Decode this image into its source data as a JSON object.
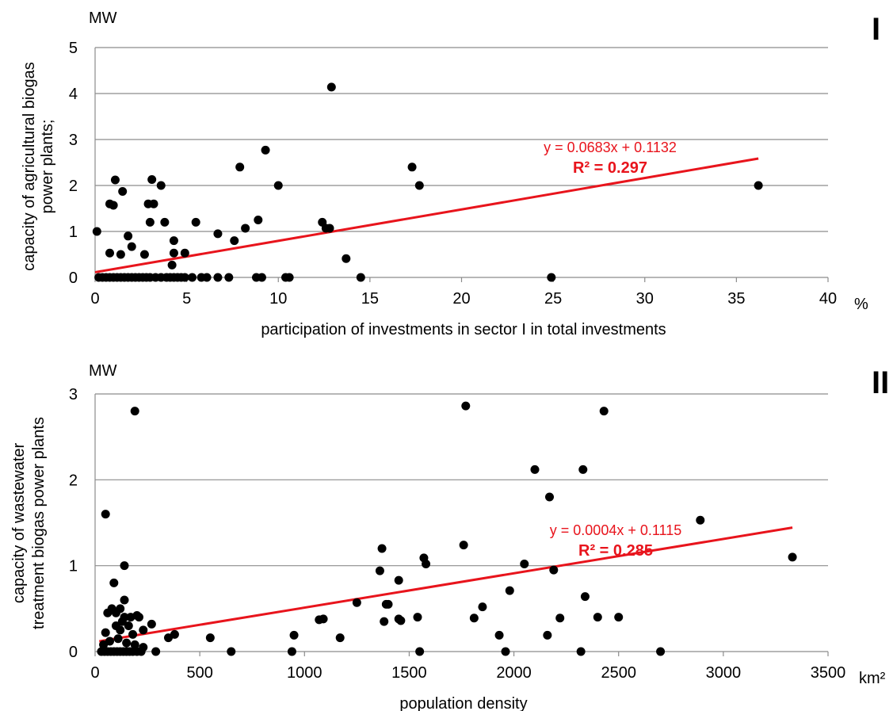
{
  "chart_data": [
    {
      "type": "scatter",
      "panel_label": "I",
      "y_unit": "MW",
      "x_unit": "%",
      "xlabel": "participation of investments in sector I in total investments",
      "ylabel": [
        "capacity of agricultural biogas",
        "power plants;"
      ],
      "xlim": [
        0,
        40
      ],
      "ylim": [
        0,
        5
      ],
      "x_ticks": [
        "0",
        "5",
        "10",
        "15",
        "20",
        "25",
        "30",
        "35",
        "40"
      ],
      "y_ticks": [
        "0",
        "1",
        "2",
        "3",
        "4",
        "5"
      ],
      "grid": true,
      "point_color": "#000000",
      "trend_color": "#e8141c",
      "trendline": {
        "slope": 0.0683,
        "intercept": 0.1132,
        "x_range": [
          0,
          36.2
        ]
      },
      "equation": "y = 0.0683x + 0.1132",
      "r_squared": "R² = 0.297",
      "points": [
        [
          0.1,
          1.0
        ],
        [
          0.8,
          0.53
        ],
        [
          0.8,
          1.6
        ],
        [
          1.0,
          1.57
        ],
        [
          1.1,
          2.12
        ],
        [
          1.4,
          0.5
        ],
        [
          1.5,
          1.87
        ],
        [
          1.8,
          0.9
        ],
        [
          2.0,
          0.67
        ],
        [
          2.7,
          0.5
        ],
        [
          2.9,
          1.6
        ],
        [
          3.0,
          1.2
        ],
        [
          3.1,
          2.13
        ],
        [
          3.2,
          1.6
        ],
        [
          3.6,
          2.0
        ],
        [
          3.8,
          1.2
        ],
        [
          4.2,
          0.27
        ],
        [
          4.3,
          0.53
        ],
        [
          4.3,
          0.8
        ],
        [
          4.9,
          0.53
        ],
        [
          5.5,
          1.2
        ],
        [
          6.7,
          0.95
        ],
        [
          7.6,
          0.8
        ],
        [
          7.9,
          2.4
        ],
        [
          8.2,
          1.07
        ],
        [
          8.9,
          1.25
        ],
        [
          9.3,
          2.77
        ],
        [
          10.0,
          2.0
        ],
        [
          12.4,
          1.2
        ],
        [
          12.6,
          1.07
        ],
        [
          12.8,
          1.07
        ],
        [
          12.9,
          4.14
        ],
        [
          13.7,
          0.41
        ],
        [
          17.3,
          2.4
        ],
        [
          17.7,
          2.0
        ],
        [
          36.2,
          2.0
        ],
        [
          0.2,
          0
        ],
        [
          0.4,
          0
        ],
        [
          0.6,
          0
        ],
        [
          0.8,
          0
        ],
        [
          1.0,
          0
        ],
        [
          1.2,
          0
        ],
        [
          1.4,
          0
        ],
        [
          1.6,
          0
        ],
        [
          1.8,
          0
        ],
        [
          2.0,
          0
        ],
        [
          2.2,
          0
        ],
        [
          2.4,
          0
        ],
        [
          2.6,
          0
        ],
        [
          2.8,
          0
        ],
        [
          3.0,
          0
        ],
        [
          3.3,
          0
        ],
        [
          3.6,
          0
        ],
        [
          3.9,
          0
        ],
        [
          4.1,
          0
        ],
        [
          4.3,
          0
        ],
        [
          4.5,
          0
        ],
        [
          4.7,
          0
        ],
        [
          4.9,
          0
        ],
        [
          5.3,
          0
        ],
        [
          5.8,
          0
        ],
        [
          6.1,
          0
        ],
        [
          6.7,
          0
        ],
        [
          7.3,
          0
        ],
        [
          8.8,
          0
        ],
        [
          9.1,
          0
        ],
        [
          10.4,
          0
        ],
        [
          10.6,
          0
        ],
        [
          14.5,
          0
        ],
        [
          24.9,
          0
        ]
      ]
    },
    {
      "type": "scatter",
      "panel_label": "II",
      "y_unit": "MW",
      "x_unit": "km²",
      "xlabel": "population density",
      "ylabel": [
        "capacity of wastewater",
        "treatment biogas power plants"
      ],
      "xlim": [
        0,
        3500
      ],
      "ylim": [
        0,
        3
      ],
      "x_ticks": [
        "0",
        "500",
        "1000",
        "1500",
        "2000",
        "2500",
        "3000",
        "3500"
      ],
      "y_ticks": [
        "0",
        "1",
        "2",
        "3"
      ],
      "grid": true,
      "point_color": "#000000",
      "trend_color": "#e8141c",
      "trendline": {
        "slope": 0.0004,
        "intercept": 0.1115,
        "x_range": [
          20,
          3330
        ]
      },
      "equation": "y = 0.0004x + 0.1115",
      "r_squared": "R² = 0.285",
      "points": [
        [
          190,
          2.8
        ],
        [
          50,
          1.6
        ],
        [
          140,
          1.0
        ],
        [
          90,
          0.8
        ],
        [
          140,
          0.6
        ],
        [
          120,
          0.5
        ],
        [
          80,
          0.5
        ],
        [
          60,
          0.45
        ],
        [
          100,
          0.45
        ],
        [
          140,
          0.4
        ],
        [
          170,
          0.4
        ],
        [
          210,
          0.4
        ],
        [
          200,
          0.42
        ],
        [
          130,
          0.35
        ],
        [
          160,
          0.3
        ],
        [
          100,
          0.3
        ],
        [
          120,
          0.25
        ],
        [
          50,
          0.22
        ],
        [
          230,
          0.25
        ],
        [
          270,
          0.32
        ],
        [
          180,
          0.2
        ],
        [
          350,
          0.16
        ],
        [
          380,
          0.2
        ],
        [
          550,
          0.16
        ],
        [
          650,
          0.0
        ],
        [
          940,
          0.0
        ],
        [
          950,
          0.19
        ],
        [
          1070,
          0.37
        ],
        [
          1090,
          0.38
        ],
        [
          1170,
          0.16
        ],
        [
          1250,
          0.57
        ],
        [
          1360,
          0.94
        ],
        [
          1370,
          1.2
        ],
        [
          1380,
          0.35
        ],
        [
          1390,
          0.55
        ],
        [
          1400,
          0.55
        ],
        [
          1450,
          0.83
        ],
        [
          1450,
          0.38
        ],
        [
          1460,
          0.36
        ],
        [
          1540,
          0.4
        ],
        [
          1550,
          0.0
        ],
        [
          1570,
          1.09
        ],
        [
          1580,
          1.02
        ],
        [
          1760,
          1.24
        ],
        [
          1770,
          2.86
        ],
        [
          1810,
          0.39
        ],
        [
          1850,
          0.52
        ],
        [
          1930,
          0.19
        ],
        [
          1960,
          0.0
        ],
        [
          1980,
          0.71
        ],
        [
          2050,
          1.02
        ],
        [
          2100,
          2.12
        ],
        [
          2160,
          0.19
        ],
        [
          2170,
          1.8
        ],
        [
          2190,
          0.95
        ],
        [
          2220,
          0.39
        ],
        [
          2320,
          0.0
        ],
        [
          2330,
          2.12
        ],
        [
          2340,
          0.64
        ],
        [
          2400,
          0.4
        ],
        [
          2430,
          2.8
        ],
        [
          2500,
          0.4
        ],
        [
          2700,
          0.0
        ],
        [
          2890,
          1.53
        ],
        [
          3330,
          1.1
        ],
        [
          30,
          0
        ],
        [
          45,
          0
        ],
        [
          60,
          0
        ],
        [
          75,
          0
        ],
        [
          90,
          0
        ],
        [
          105,
          0
        ],
        [
          120,
          0
        ],
        [
          135,
          0
        ],
        [
          150,
          0
        ],
        [
          165,
          0
        ],
        [
          180,
          0
        ],
        [
          200,
          0
        ],
        [
          220,
          0
        ],
        [
          290,
          0
        ],
        [
          40,
          0.08
        ],
        [
          70,
          0.12
        ],
        [
          110,
          0.15
        ],
        [
          150,
          0.1
        ],
        [
          190,
          0.08
        ],
        [
          230,
          0.05
        ]
      ]
    }
  ]
}
